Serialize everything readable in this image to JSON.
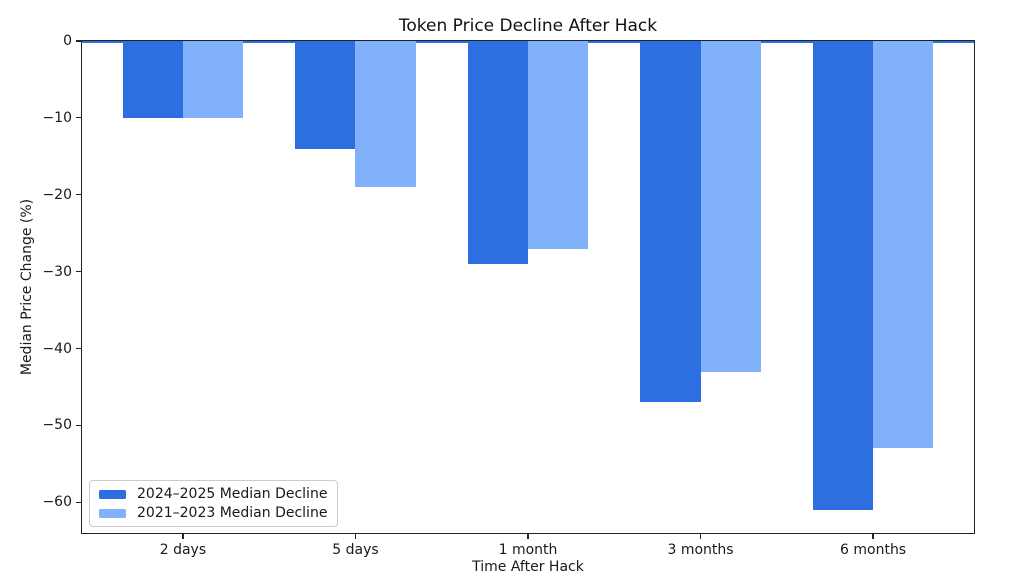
{
  "chart_data": {
    "type": "bar",
    "title": "Token Price Decline After Hack",
    "xlabel": "Time After Hack",
    "ylabel": "Median Price Change (%)",
    "categories": [
      "2 days",
      "5 days",
      "1 month",
      "3 months",
      "6 months"
    ],
    "series": [
      {
        "name": "2024–2025 Median Decline",
        "color": "#2D6EE0",
        "values": [
          -10,
          -14,
          -29,
          -47,
          -61
        ]
      },
      {
        "name": "2021–2023 Median Decline",
        "color": "#81B1FB",
        "values": [
          -10,
          -19,
          -27,
          -43,
          -53
        ]
      }
    ],
    "ylim": [
      -64,
      0
    ],
    "ytick_values": [
      0,
      -10,
      -20,
      -30,
      -40,
      -50,
      -60
    ],
    "ytick_labels": [
      "0",
      "−10",
      "−20",
      "−30",
      "−40",
      "−50",
      "−60"
    ],
    "xtick_labels": [
      "2 days",
      "5 days",
      "1 month",
      "3 months",
      "6 months"
    ],
    "zero_line_color": "#2D6EE0",
    "legend_position": "lower left",
    "grid": false,
    "bar_width_fraction": 0.35,
    "background_color": "#FFFFFF"
  }
}
